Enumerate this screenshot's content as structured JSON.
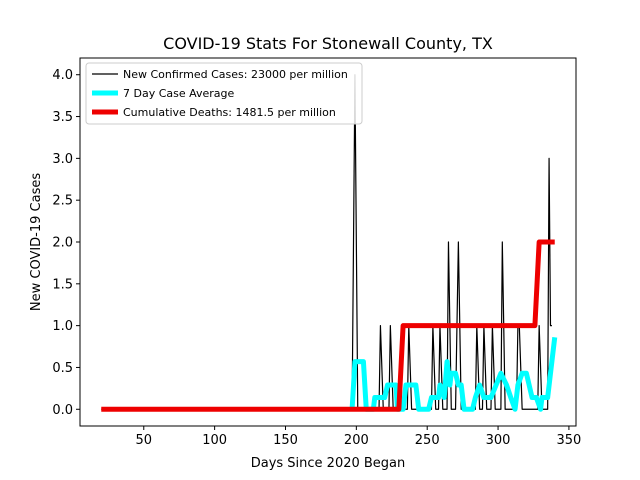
{
  "chart_data": {
    "type": "line",
    "title": "COVID-19 Stats For Stonewall County, TX",
    "xlabel": "Days Since 2020 Began",
    "ylabel": "New COVID-19 Cases",
    "xlim": [
      5,
      355
    ],
    "ylim": [
      -0.2,
      4.2
    ],
    "x_ticks": [
      50,
      100,
      150,
      200,
      250,
      300,
      350
    ],
    "y_ticks": [
      0.0,
      0.5,
      1.0,
      1.5,
      2.0,
      2.5,
      3.0,
      3.5,
      4.0
    ],
    "y_tick_labels": [
      "0.0",
      "0.5",
      "1.0",
      "1.5",
      "2.0",
      "2.5",
      "3.0",
      "3.5",
      "4.0"
    ],
    "grid": false,
    "legend_position": "top-left",
    "series": [
      {
        "name": "New Confirmed Cases: 23000 per million",
        "color": "#000000",
        "points": [
          [
            20,
            0
          ],
          [
            197,
            0
          ],
          [
            199,
            4
          ],
          [
            201,
            0
          ],
          [
            216,
            0
          ],
          [
            217,
            1
          ],
          [
            219,
            0
          ],
          [
            223,
            0
          ],
          [
            224,
            1
          ],
          [
            226,
            0
          ],
          [
            236,
            0
          ],
          [
            237,
            1
          ],
          [
            239,
            0
          ],
          [
            253,
            0
          ],
          [
            254,
            1
          ],
          [
            256,
            0
          ],
          [
            258,
            0
          ],
          [
            259,
            1
          ],
          [
            261,
            0
          ],
          [
            264,
            0
          ],
          [
            265,
            2
          ],
          [
            267,
            0
          ],
          [
            270,
            0
          ],
          [
            271,
            1
          ],
          [
            272,
            2
          ],
          [
            274,
            0
          ],
          [
            284,
            0
          ],
          [
            285,
            1
          ],
          [
            287,
            0
          ],
          [
            289,
            0
          ],
          [
            290,
            1
          ],
          [
            292,
            0
          ],
          [
            295,
            0
          ],
          [
            296,
            1
          ],
          [
            298,
            0
          ],
          [
            302,
            0
          ],
          [
            303,
            2
          ],
          [
            305,
            0
          ],
          [
            313,
            0
          ],
          [
            314,
            1
          ],
          [
            315,
            1
          ],
          [
            317,
            0
          ],
          [
            328,
            0
          ],
          [
            329,
            1
          ],
          [
            331,
            0
          ],
          [
            335,
            0
          ],
          [
            336,
            3
          ],
          [
            337,
            1
          ],
          [
            338,
            1
          ]
        ]
      },
      {
        "name": "7 Day Case Average",
        "color": "#00ffff",
        "points": [
          [
            197,
            0
          ],
          [
            199,
            0.57
          ],
          [
            205,
            0.57
          ],
          [
            207,
            0
          ],
          [
            212,
            0
          ],
          [
            213,
            0.14
          ],
          [
            220,
            0.14
          ],
          [
            222,
            0.29
          ],
          [
            228,
            0.29
          ],
          [
            229,
            0
          ],
          [
            233,
            0
          ],
          [
            235,
            0.29
          ],
          [
            242,
            0.29
          ],
          [
            244,
            0
          ],
          [
            251,
            0
          ],
          [
            253,
            0.14
          ],
          [
            258,
            0.14
          ],
          [
            259,
            0.29
          ],
          [
            262,
            0.14
          ],
          [
            264,
            0.57
          ],
          [
            266,
            0.29
          ],
          [
            267,
            0.43
          ],
          [
            270,
            0.43
          ],
          [
            272,
            0.29
          ],
          [
            274,
            0.29
          ],
          [
            276,
            0
          ],
          [
            282,
            0
          ],
          [
            284,
            0.14
          ],
          [
            287,
            0.29
          ],
          [
            290,
            0.14
          ],
          [
            295,
            0.14
          ],
          [
            302,
            0.43
          ],
          [
            306,
            0.29
          ],
          [
            309,
            0.14
          ],
          [
            312,
            0
          ],
          [
            314,
            0.29
          ],
          [
            317,
            0.43
          ],
          [
            320,
            0.43
          ],
          [
            324,
            0.14
          ],
          [
            327,
            0.14
          ],
          [
            330,
            0
          ],
          [
            331,
            0.14
          ],
          [
            335,
            0.14
          ],
          [
            337,
            0.43
          ],
          [
            340,
            0.86
          ]
        ]
      },
      {
        "name": "Cumulative Deaths: 1481.5 per million",
        "color": "#ee0000",
        "points": [
          [
            20,
            0
          ],
          [
            230,
            0
          ],
          [
            233,
            1
          ],
          [
            326,
            1
          ],
          [
            329,
            2
          ],
          [
            340,
            2
          ]
        ]
      }
    ]
  }
}
